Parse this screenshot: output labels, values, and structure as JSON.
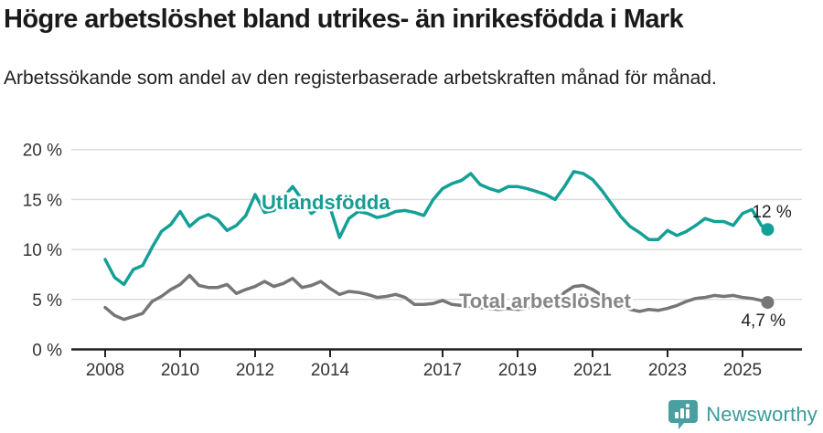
{
  "header": {
    "title": "Högre arbetslöshet bland utrikes- än inrikesfödda i Mark",
    "subtitle": "Arbetssökande som andel av den registerbaserade arbetskraften månad för månad."
  },
  "footer": {
    "brand": "Newsworthy",
    "logo_icon": "newsworthy-pin-barchart-icon"
  },
  "colors": {
    "foreign_born_line": "#14a096",
    "foreign_born_label": "#149d93",
    "total_line": "#767676",
    "total_label": "#878787",
    "grid": "#dcdcdc",
    "axis": "#222222",
    "tick_text": "#333333",
    "end_label_text": "#1f1f1f",
    "brand_teal": "#3a9a9a",
    "logo_fill": "#4aa0a0"
  },
  "chart_data": {
    "type": "line",
    "unit": "%",
    "grid": "horizontal",
    "ylim": [
      0,
      20
    ],
    "xlim": [
      2007.1,
      2026.6
    ],
    "yticks": [
      "20 %",
      "15 %",
      "10 %",
      "5 %",
      "0 %"
    ],
    "ytick_values": [
      20,
      15,
      10,
      5,
      0
    ],
    "xticks": [
      "2008",
      "2010",
      "2012",
      "2014",
      "2017",
      "2019",
      "2021",
      "2023",
      "2025"
    ],
    "xtick_values": [
      2008,
      2010,
      2012,
      2014,
      2017,
      2019,
      2021,
      2023,
      2025
    ],
    "x": [
      2008.0,
      2008.25,
      2008.5,
      2008.75,
      2009.0,
      2009.25,
      2009.5,
      2009.75,
      2010.0,
      2010.25,
      2010.5,
      2010.75,
      2011.0,
      2011.25,
      2011.5,
      2011.75,
      2012.0,
      2012.25,
      2012.5,
      2012.75,
      2013.0,
      2013.25,
      2013.5,
      2013.75,
      2014.0,
      2014.25,
      2014.5,
      2014.75,
      2015.0,
      2015.25,
      2015.5,
      2015.75,
      2016.0,
      2016.25,
      2016.5,
      2016.75,
      2017.0,
      2017.25,
      2017.5,
      2017.75,
      2018.0,
      2018.25,
      2018.5,
      2018.75,
      2019.0,
      2019.25,
      2019.5,
      2019.75,
      2020.0,
      2020.25,
      2020.5,
      2020.75,
      2021.0,
      2021.25,
      2021.5,
      2021.75,
      2022.0,
      2022.25,
      2022.5,
      2022.75,
      2023.0,
      2023.25,
      2023.5,
      2023.75,
      2024.0,
      2024.25,
      2024.5,
      2024.75,
      2025.0,
      2025.25,
      2025.5,
      2025.67
    ],
    "series": [
      {
        "name": "Utlandsfödda",
        "end_label": "12 %",
        "values": [
          9.0,
          7.2,
          6.5,
          8.0,
          8.4,
          10.2,
          11.8,
          12.5,
          13.8,
          12.3,
          13.1,
          13.5,
          13.0,
          11.9,
          12.4,
          13.4,
          15.5,
          13.7,
          13.9,
          15.2,
          16.3,
          15.0,
          13.6,
          14.3,
          14.2,
          11.2,
          13.1,
          13.8,
          13.6,
          13.2,
          13.4,
          13.8,
          13.9,
          13.7,
          13.4,
          15.0,
          16.1,
          16.6,
          16.9,
          17.6,
          16.5,
          16.1,
          15.8,
          16.3,
          16.3,
          16.1,
          15.8,
          15.5,
          15.0,
          16.3,
          17.8,
          17.6,
          17.0,
          15.9,
          14.6,
          13.3,
          12.3,
          11.7,
          11.0,
          11.0,
          11.9,
          11.4,
          11.8,
          12.4,
          13.1,
          12.8,
          12.8,
          12.4,
          13.6,
          14.0,
          12.4,
          12.0
        ]
      },
      {
        "name": "Total arbetslöshet",
        "end_label": "4,7 %",
        "values": [
          4.2,
          3.4,
          3.0,
          3.3,
          3.6,
          4.8,
          5.3,
          6.0,
          6.5,
          7.4,
          6.4,
          6.2,
          6.2,
          6.5,
          5.6,
          6.0,
          6.3,
          6.8,
          6.3,
          6.6,
          7.1,
          6.2,
          6.4,
          6.8,
          6.1,
          5.5,
          5.8,
          5.7,
          5.5,
          5.2,
          5.3,
          5.5,
          5.2,
          4.5,
          4.5,
          4.6,
          4.9,
          4.5,
          4.4,
          4.3,
          4.2,
          4.1,
          4.0,
          4.1,
          4.0,
          4.1,
          4.2,
          4.3,
          4.6,
          5.7,
          6.3,
          6.4,
          6.0,
          5.4,
          4.9,
          4.4,
          4.0,
          3.8,
          4.0,
          3.9,
          4.1,
          4.4,
          4.8,
          5.1,
          5.2,
          5.4,
          5.3,
          5.4,
          5.2,
          5.1,
          4.9,
          4.7
        ]
      }
    ]
  }
}
